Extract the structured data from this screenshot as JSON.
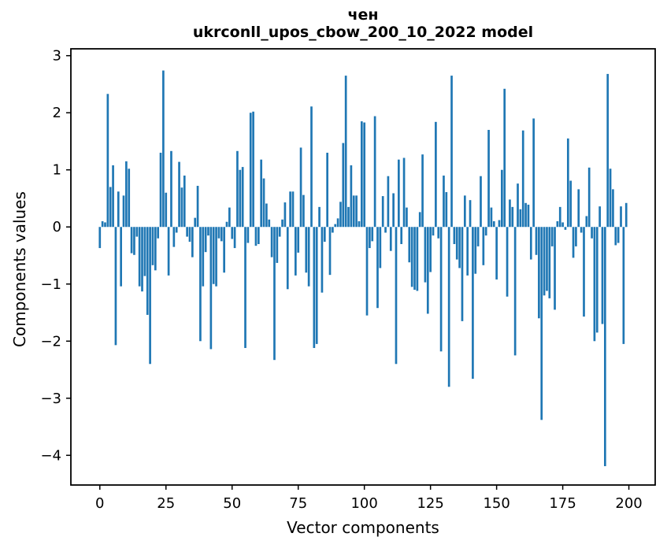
{
  "figure": {
    "title_line1": "чен",
    "title_line2": "ukrconll_upos_cbow_200_10_2022 model",
    "background": "#ffffff"
  },
  "chart_data": {
    "type": "bar",
    "title": "чен",
    "subtitle": "ukrconll_upos_cbow_200_10_2022 model",
    "xlabel": "Vector components",
    "ylabel": "Components values",
    "bar_color": "#1f77b4",
    "axis_color": "#000000",
    "legend": "none",
    "grid": false,
    "x_ticks": [
      0,
      25,
      50,
      75,
      100,
      125,
      150,
      175,
      200
    ],
    "y_ticks": [
      3,
      2,
      1,
      0,
      -1,
      -2,
      -3,
      -4
    ],
    "xlim": [
      -10.95,
      209.95
    ],
    "ylim": [
      -4.52,
      3.12
    ],
    "n_bars": 200,
    "bar_width_units": 0.8,
    "values": [
      -0.37,
      0.1,
      0.08,
      2.33,
      0.7,
      1.08,
      -2.07,
      0.62,
      -1.04,
      0.55,
      1.15,
      1.02,
      -0.46,
      -0.49,
      -0.17,
      -1.04,
      -1.13,
      -0.86,
      -1.54,
      -2.4,
      -0.67,
      -0.76,
      -0.2,
      1.3,
      2.74,
      0.6,
      -0.85,
      1.33,
      -0.35,
      -0.1,
      1.14,
      0.69,
      0.9,
      -0.17,
      -0.26,
      -0.53,
      0.16,
      0.72,
      -2.0,
      -1.04,
      -0.44,
      -0.15,
      -2.14,
      -1.0,
      -1.04,
      -0.2,
      -0.25,
      -0.8,
      0.09,
      0.34,
      -0.21,
      -0.37,
      1.33,
      1.0,
      1.05,
      -2.12,
      -0.28,
      2.0,
      2.02,
      -0.33,
      -0.3,
      1.18,
      0.85,
      0.41,
      0.13,
      -0.53,
      -2.33,
      -0.63,
      -0.17,
      0.13,
      0.43,
      -1.09,
      0.62,
      0.62,
      -0.85,
      -0.45,
      1.39,
      0.56,
      -0.8,
      -1.04,
      2.11,
      -2.12,
      -2.05,
      0.35,
      -1.15,
      -0.26,
      1.3,
      -0.84,
      -0.1,
      0.05,
      0.15,
      0.44,
      1.47,
      2.65,
      0.35,
      1.08,
      0.55,
      0.55,
      0.1,
      1.85,
      1.83,
      -1.55,
      -0.37,
      -0.25,
      1.94,
      -1.42,
      -0.72,
      0.54,
      -0.1,
      0.89,
      -0.42,
      0.59,
      -2.4,
      1.18,
      -0.3,
      1.21,
      0.34,
      -0.62,
      -1.05,
      -1.1,
      -1.12,
      0.26,
      1.27,
      -0.97,
      -1.52,
      -0.79,
      -0.15,
      1.84,
      -0.2,
      -2.18,
      0.9,
      0.61,
      -2.8,
      2.65,
      -0.3,
      -0.57,
      -0.72,
      -1.65,
      0.55,
      -0.85,
      0.47,
      -2.66,
      -0.82,
      -0.34,
      0.89,
      -0.67,
      -0.15,
      1.7,
      0.34,
      0.1,
      -0.92,
      0.12,
      1.0,
      2.42,
      -1.22,
      0.48,
      0.35,
      -2.25,
      0.76,
      0.31,
      1.69,
      0.42,
      0.39,
      -0.57,
      1.9,
      -0.49,
      -1.6,
      -3.38,
      -1.2,
      -1.12,
      -1.25,
      -0.34,
      -1.45,
      0.1,
      0.35,
      0.08,
      -0.05,
      1.55,
      0.81,
      -0.54,
      -0.34,
      0.66,
      -0.1,
      -1.57,
      0.19,
      1.04,
      -0.2,
      -2.0,
      -1.85,
      0.36,
      -1.7,
      -4.19,
      2.68,
      1.02,
      0.66,
      -0.32,
      -0.28,
      0.36,
      -2.05,
      0.42
    ]
  }
}
